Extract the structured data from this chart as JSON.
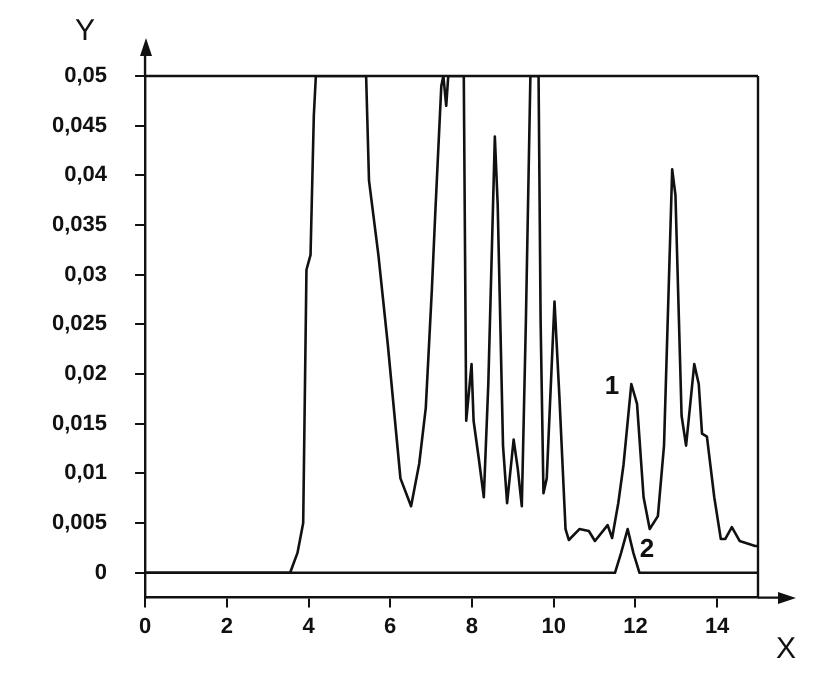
{
  "chart_data": {
    "type": "line",
    "xlabel": "X",
    "ylabel": "Y",
    "xlim": [
      0,
      15
    ],
    "xticks": [
      0,
      2,
      4,
      6,
      8,
      10,
      12,
      14
    ],
    "ylim": [
      -0.0025,
      0.05
    ],
    "yticks": [
      0,
      {
        "value": 0.005,
        "label": "0,005"
      },
      {
        "value": 0.01,
        "label": "0,01"
      },
      {
        "value": 0.015,
        "label": "0,015"
      },
      {
        "value": 0.02,
        "label": "0,02"
      },
      {
        "value": 0.025,
        "label": "0,025"
      },
      {
        "value": 0.03,
        "label": "0,03"
      },
      {
        "value": 0.035,
        "label": "0,035"
      },
      {
        "value": 0.04,
        "label": "0,04"
      },
      {
        "value": 0.045,
        "label": "0,045"
      },
      {
        "value": 0.05,
        "label": "0,05"
      }
    ],
    "grid": false,
    "legend": false,
    "marker": "none",
    "line_style": "solid",
    "series": [
      {
        "name": "1",
        "color": "#111111",
        "x": [
          0,
          3.55,
          3.73,
          3.87,
          3.95,
          4.05,
          4.13,
          4.18,
          5.41,
          5.48,
          5.71,
          5.94,
          6.25,
          6.51,
          6.71,
          6.87,
          7.02,
          7.1,
          7.25,
          7.3,
          7.37,
          7.42,
          7.8,
          7.86,
          7.99,
          8.04,
          8.17,
          8.29,
          8.4,
          8.56,
          8.63,
          8.76,
          8.86,
          9.02,
          9.12,
          9.22,
          9.32,
          9.43,
          9.63,
          9.68,
          9.75,
          9.83,
          10.02,
          10.14,
          10.29,
          10.37,
          10.63,
          10.86,
          11.01,
          11.32,
          11.43,
          11.58,
          11.71,
          11.9,
          12.04,
          12.2,
          12.35,
          12.55,
          12.7,
          12.9,
          12.98,
          13.13,
          13.24,
          13.44,
          13.55,
          13.63,
          13.75,
          13.93,
          14.09,
          14.2,
          14.36,
          14.55,
          14.93,
          15
        ],
        "values": [
          0,
          0,
          0.002,
          0.005,
          0.0305,
          0.032,
          0.046,
          0.05,
          0.05,
          0.0395,
          0.032,
          0.023,
          0.0095,
          0.0067,
          0.011,
          0.0166,
          0.0286,
          0.036,
          0.049,
          0.05,
          0.047,
          0.05,
          0.05,
          0.0153,
          0.021,
          0.0153,
          0.0114,
          0.0076,
          0.019,
          0.0439,
          0.037,
          0.0128,
          0.007,
          0.0134,
          0.0105,
          0.0067,
          0.0254,
          0.05,
          0.05,
          0.0254,
          0.008,
          0.0095,
          0.0273,
          0.0177,
          0.0044,
          0.0033,
          0.0044,
          0.0042,
          0.0032,
          0.0048,
          0.0035,
          0.007,
          0.0109,
          0.019,
          0.017,
          0.0076,
          0.0044,
          0.0057,
          0.0128,
          0.0406,
          0.038,
          0.0158,
          0.0128,
          0.021,
          0.019,
          0.014,
          0.0137,
          0.0076,
          0.0034,
          0.0034,
          0.0046,
          0.0032,
          0.0027,
          0.0027
        ]
      },
      {
        "name": "2",
        "color": "#111111",
        "x": [
          0,
          11.5,
          11.65,
          11.81,
          11.95,
          12.1,
          15
        ],
        "values": [
          0,
          0,
          0.002,
          0.0044,
          0.002,
          0,
          0
        ]
      }
    ]
  }
}
